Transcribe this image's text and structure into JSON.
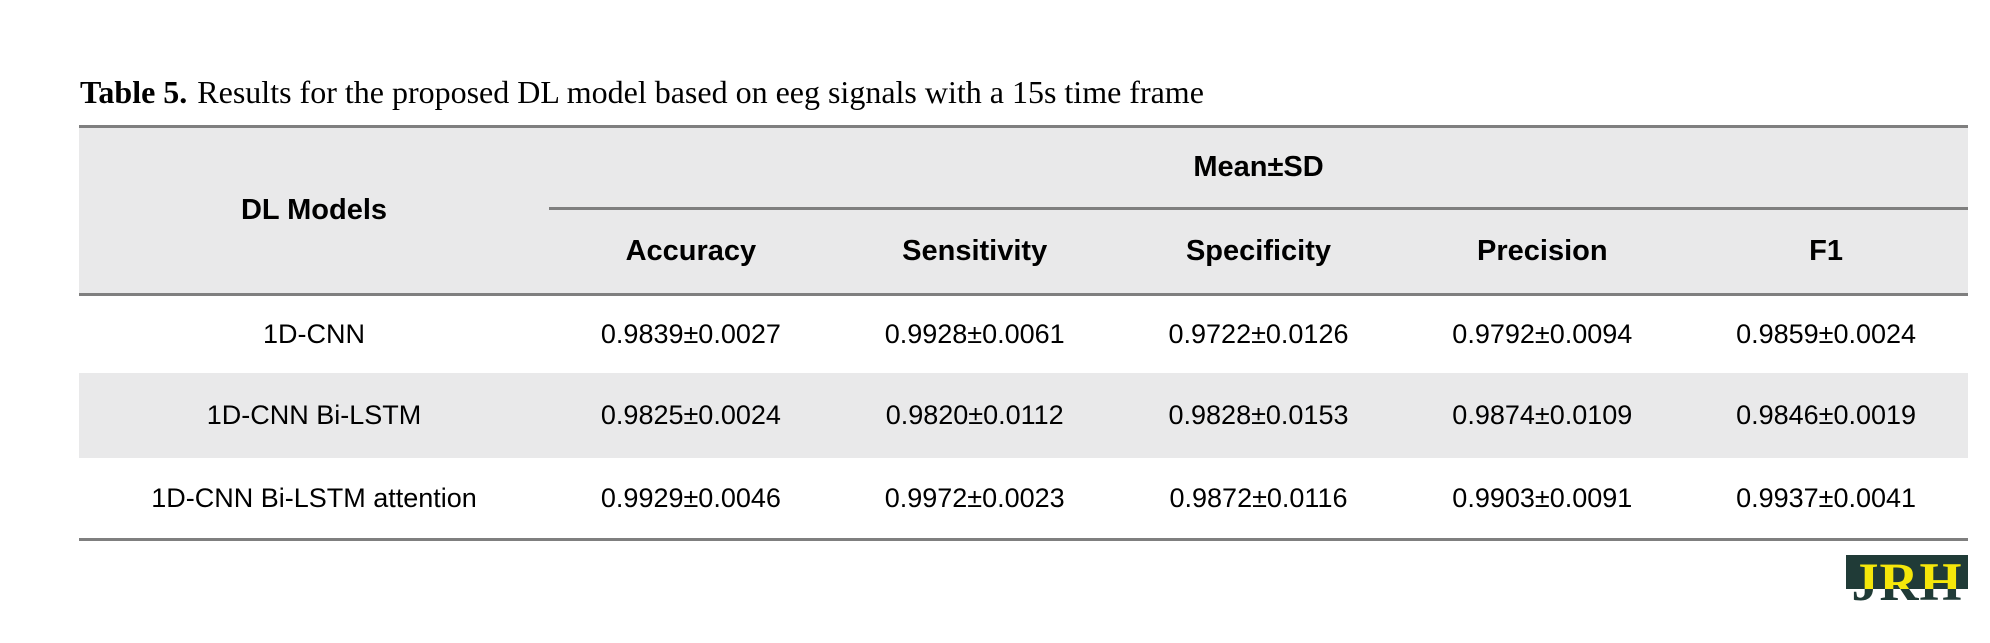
{
  "caption": {
    "label": "Table 5.",
    "text": "Results for the proposed DL model based on eeg signals with a 15s time frame"
  },
  "table": {
    "model_column_header": "DL Models",
    "group_header": "Mean±SD",
    "metric_headers": [
      "Accuracy",
      "Sensitivity",
      "Specificity",
      "Precision",
      "F1"
    ],
    "rows": [
      {
        "model": "1D-CNN",
        "values": [
          "0.9839±0.0027",
          "0.9928±0.0061",
          "0.9722±0.0126",
          "0.9792±0.0094",
          "0.9859±0.0024"
        ]
      },
      {
        "model": "1D-CNN Bi-LSTM",
        "values": [
          "0.9825±0.0024",
          "0.9820±0.0112",
          "0.9828±0.0153",
          "0.9874±0.0109",
          "0.9846±0.0019"
        ]
      },
      {
        "model": "1D-CNN Bi-LSTM attention",
        "values": [
          "0.9929±0.0046",
          "0.9972±0.0023",
          "0.9872±0.0116",
          "0.9903±0.0091",
          "0.9937±0.0041"
        ]
      }
    ]
  },
  "logo": {
    "text": "JRH",
    "colors": {
      "teal": "#203b37",
      "yellow": "#f5e70a"
    }
  },
  "colors": {
    "header_bg": "#e9e9ea",
    "alt_row_bg": "#e9e9ea",
    "rule": "#7f7f7f"
  }
}
